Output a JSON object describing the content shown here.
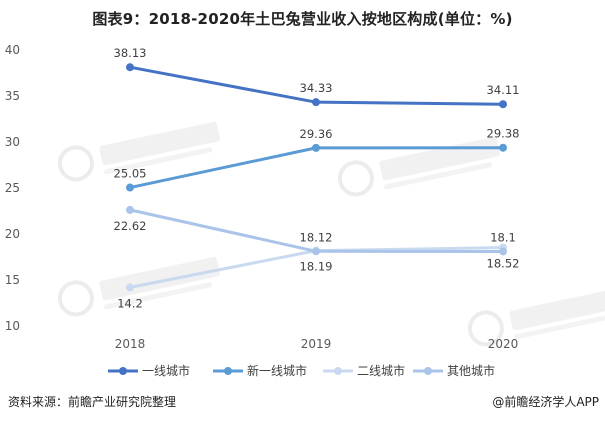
{
  "chart_data": {
    "type": "line",
    "title": "图表9：2018-2020年土巴兔营业收入按地区构成(单位：%)",
    "categories": [
      "2018",
      "2019",
      "2020"
    ],
    "ylim": [
      10,
      40
    ],
    "yticks": [
      10,
      15,
      20,
      25,
      30,
      35,
      40
    ],
    "ytick_labels": [
      "10",
      "15",
      "20",
      "25",
      "30",
      "35",
      "40"
    ],
    "grid": false,
    "legend_position": "bottom",
    "series": [
      {
        "name": "一线城市",
        "values": [
          38.13,
          34.33,
          34.11
        ],
        "labels": [
          "38.13",
          "34.33",
          "34.11"
        ],
        "color": "#4472c4",
        "label_side": [
          "above",
          "above",
          "above"
        ]
      },
      {
        "name": "新一线城市",
        "values": [
          25.05,
          29.36,
          29.38
        ],
        "labels": [
          "25.05",
          "29.36",
          "29.38"
        ],
        "color": "#5b9bd5",
        "label_side": [
          "above",
          "above",
          "above"
        ]
      },
      {
        "name": "二线城市",
        "values": [
          14.2,
          18.19,
          18.52
        ],
        "labels": [
          "14.2",
          "18.19",
          "18.52"
        ],
        "color": "#c9daf0",
        "label_side": [
          "below",
          "below",
          "below"
        ]
      },
      {
        "name": "其他城市",
        "values": [
          22.62,
          18.12,
          18.1
        ],
        "labels": [
          "22.62",
          "18.12",
          "18.1"
        ],
        "color": "#a9c4e8",
        "label_side": [
          "below",
          "above",
          "above"
        ]
      }
    ]
  },
  "footer": {
    "source": "资料来源：前瞻产业研究院整理",
    "brand": "@前瞻经济学人APP"
  }
}
